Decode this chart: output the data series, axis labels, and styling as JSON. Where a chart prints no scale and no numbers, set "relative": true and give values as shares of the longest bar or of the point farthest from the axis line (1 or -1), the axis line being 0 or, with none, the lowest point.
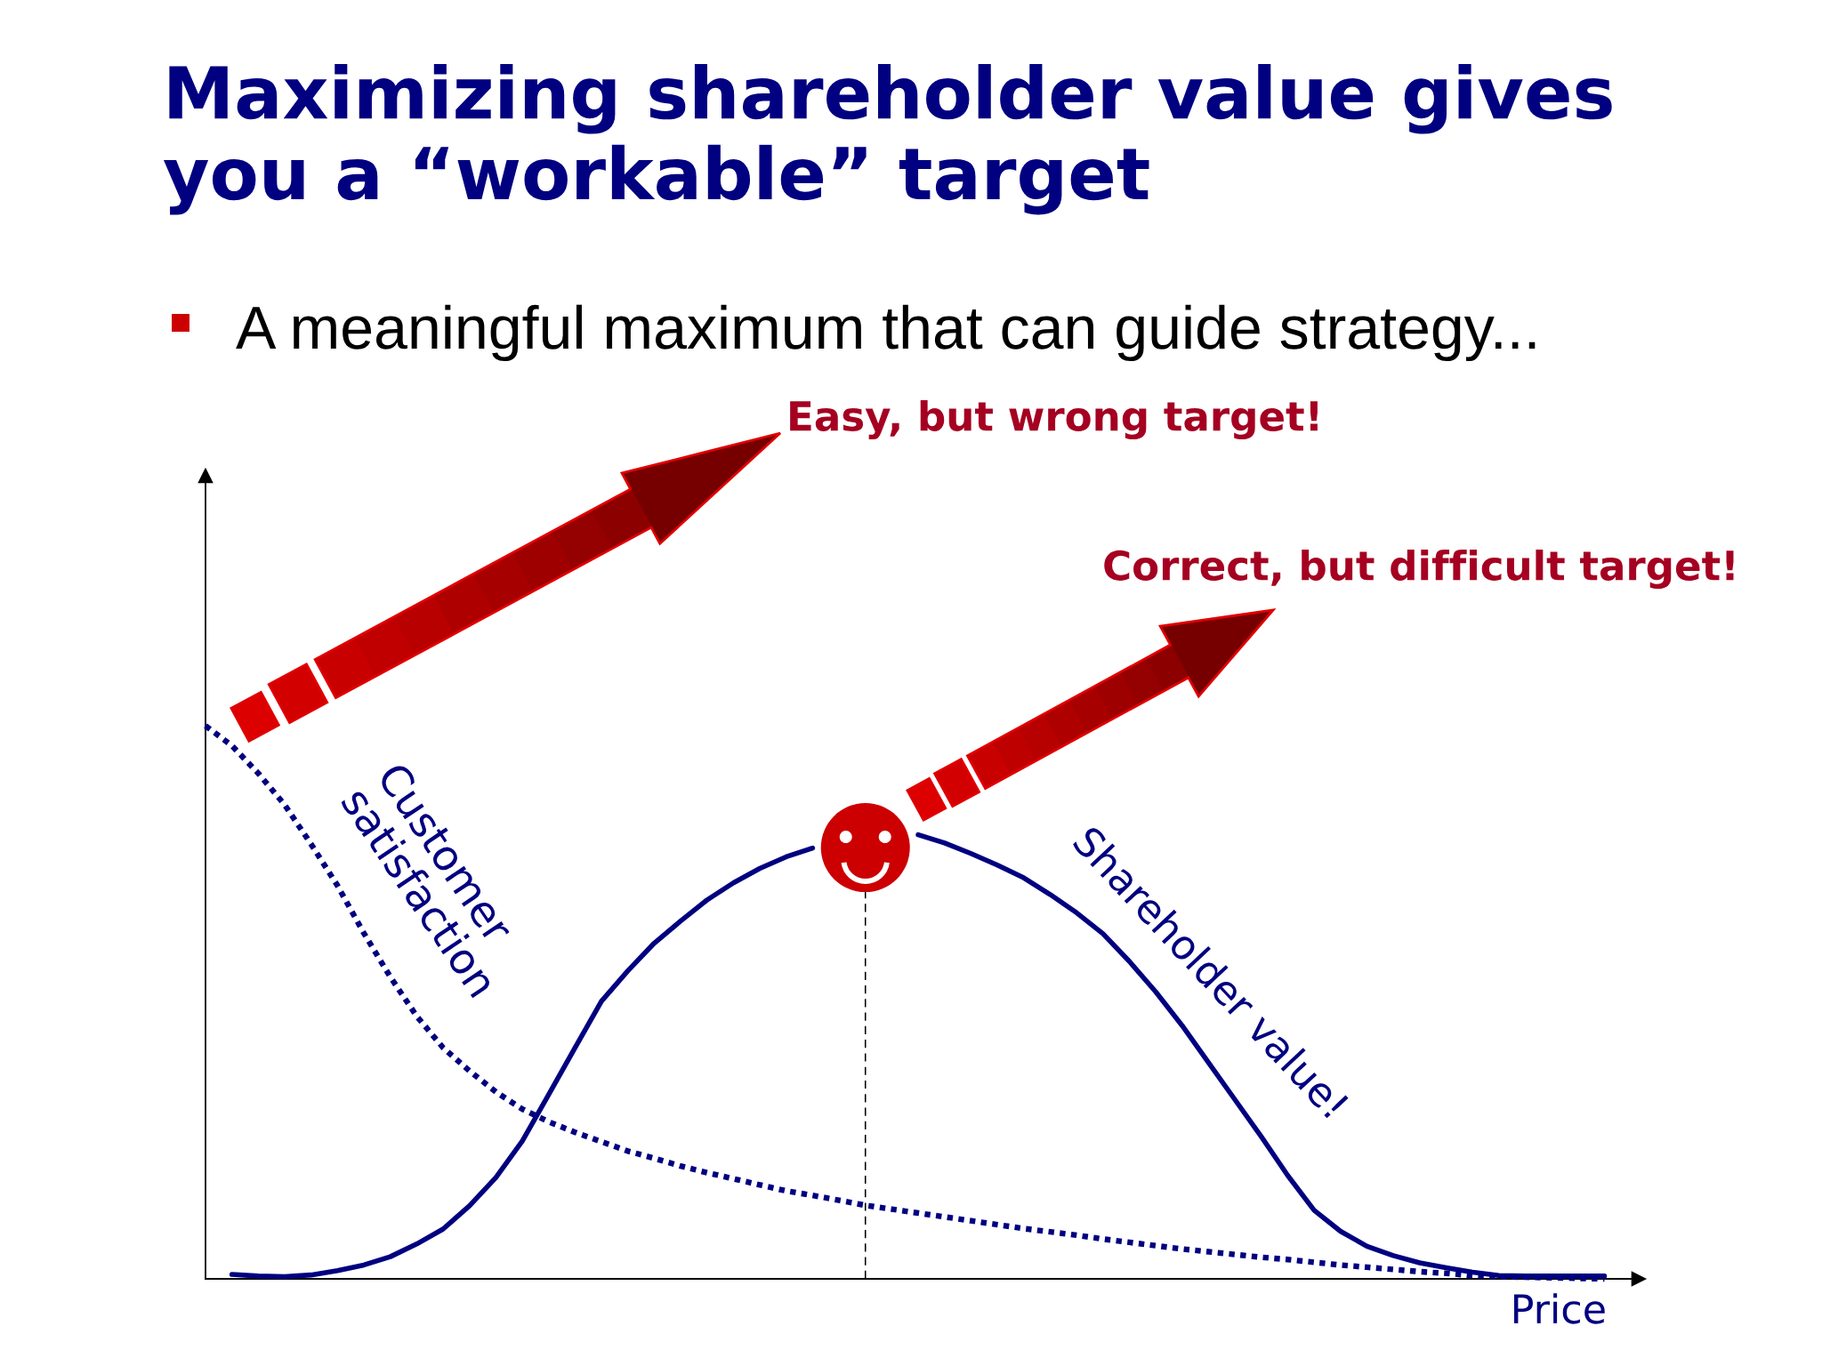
{
  "chart_data": {
    "type": "line",
    "title": "Maximizing shareholder value gives\nyou a “workable” target",
    "subtitle": "A meaningful maximum that can guide strategy...",
    "xlabel": "Price",
    "relative": true,
    "categories": [
      null,
      null,
      null,
      null,
      null,
      null,
      null,
      null,
      null,
      null,
      null,
      null,
      null,
      null,
      null,
      null,
      null,
      null,
      null,
      null,
      null,
      null,
      null,
      null,
      null,
      null,
      null,
      null,
      null,
      null,
      null,
      null,
      null,
      null,
      null,
      null,
      null,
      null,
      null,
      null,
      null,
      null,
      null,
      null,
      null,
      null,
      null,
      null,
      null,
      null,
      null,
      null,
      null,
      null
    ],
    "series": [
      {
        "name": "Customer\nsatisfaction",
        "color": "#000080",
        "line_style": "dotted",
        "values": [
          1.0,
          0.964,
          0.914,
          0.857,
          0.786,
          0.711,
          0.625,
          0.546,
          0.475,
          0.418,
          0.376,
          0.338,
          0.307,
          0.284,
          0.265,
          0.248,
          0.231,
          0.218,
          0.204,
          0.192,
          0.181,
          0.17,
          0.159,
          0.151,
          0.142,
          0.133,
          0.126,
          0.119,
          0.112,
          0.105,
          0.098,
          0.091,
          0.085,
          0.079,
          0.072,
          0.066,
          0.06,
          0.054,
          0.049,
          0.044,
          0.039,
          0.035,
          0.03,
          0.025,
          0.021,
          0.017,
          0.013,
          0.01,
          0.006,
          0.004,
          0.003,
          0.002,
          0.001,
          0.0
        ]
      },
      {
        "name": "Shareholder value!",
        "color": "#000080",
        "line_style": "solid",
        "values": [
          null,
          0.008,
          0.005,
          0.004,
          0.007,
          0.015,
          0.025,
          0.04,
          0.063,
          0.09,
          0.132,
          0.183,
          0.249,
          0.333,
          0.418,
          0.502,
          0.557,
          0.607,
          0.647,
          0.685,
          0.716,
          0.742,
          0.763,
          0.779,
          null,
          null,
          null,
          0.803,
          0.788,
          0.769,
          0.748,
          0.725,
          0.695,
          0.662,
          0.624,
          0.574,
          0.519,
          0.458,
          0.391,
          0.324,
          0.257,
          0.187,
          0.124,
          0.086,
          0.059,
          0.042,
          0.029,
          0.02,
          0.012,
          0.006,
          0.005,
          0.005,
          0.005,
          0.005
        ]
      }
    ],
    "annotations": [
      "Easy, but wrong target!",
      "Correct, but difficult target!"
    ]
  }
}
